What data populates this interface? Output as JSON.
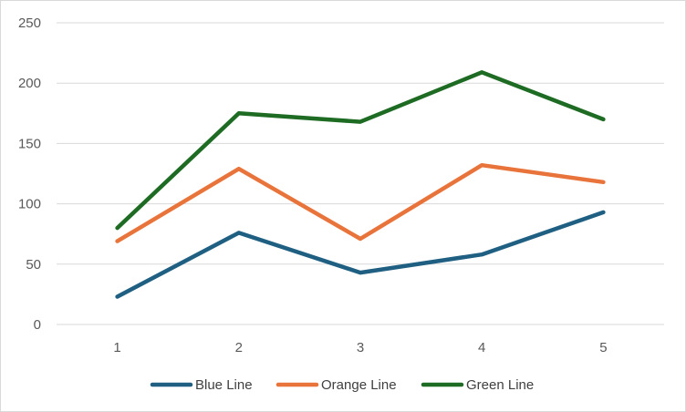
{
  "chart_data": {
    "type": "line",
    "title": "",
    "xlabel": "",
    "ylabel": "",
    "categories": [
      "1",
      "2",
      "3",
      "4",
      "5"
    ],
    "ylim": [
      0,
      250
    ],
    "yticks": [
      0,
      50,
      100,
      150,
      200,
      250
    ],
    "grid": true,
    "legend_position": "bottom",
    "series": [
      {
        "name": "Blue Line",
        "color": "#1f5f82",
        "values": [
          23,
          76,
          43,
          58,
          93
        ]
      },
      {
        "name": "Orange Line",
        "color": "#e8743b",
        "values": [
          69,
          129,
          71,
          132,
          118
        ]
      },
      {
        "name": "Green Line",
        "color": "#1e6b24",
        "values": [
          80,
          175,
          168,
          209,
          170
        ]
      }
    ]
  }
}
